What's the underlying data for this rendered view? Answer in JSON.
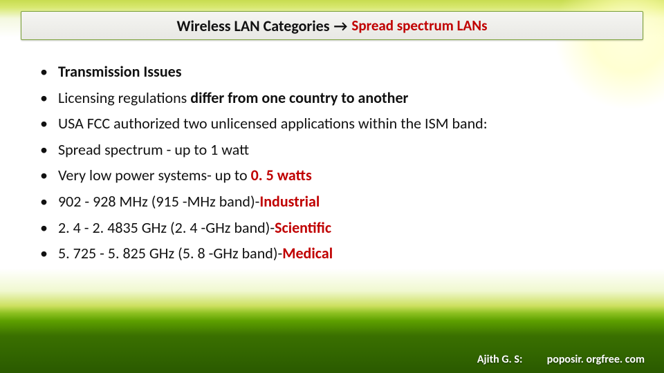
{
  "colors": {
    "accent_red": "#c00000",
    "title_border": "#7aa038",
    "text": "#111111",
    "footer_text": "#ffffff",
    "bg_top_band": "#c8dc50",
    "bg_grass_light": "#8cc020",
    "bg_grass_dark": "#2a5a00"
  },
  "title": {
    "main": "Wireless LAN Categories",
    "arrow": "→",
    "sub": "Spread spectrum LANs",
    "main_fontsize": 22,
    "sub_fontsize": 21,
    "main_weight": 700
  },
  "bullets": {
    "fontsize": 22,
    "items": [
      {
        "segments": [
          {
            "text": "Transmission Issues",
            "bold": true
          }
        ]
      },
      {
        "segments": [
          {
            "text": "Licensing regulations "
          },
          {
            "text": "differ from one country to another",
            "bold": true
          }
        ]
      },
      {
        "segments": [
          {
            "text": "USA FCC authorized two unlicensed applications within the ISM band:"
          }
        ]
      },
      {
        "segments": [
          {
            "text": "Spread spectrum - up to 1 watt"
          }
        ]
      },
      {
        "segments": [
          {
            "text": "Very low power systems- up to "
          },
          {
            "text": "0. 5 watts",
            "red": true
          }
        ]
      },
      {
        "segments": [
          {
            "text": "902 - 928 MHz (915 -MHz band)-"
          },
          {
            "text": "Industrial",
            "red": true
          }
        ]
      },
      {
        "segments": [
          {
            "text": "2. 4 - 2. 4835 GHz (2. 4 -GHz band)-"
          },
          {
            "text": "Scientific",
            "red": true
          }
        ]
      },
      {
        "segments": [
          {
            "text": "5. 725 - 5. 825 GHz (5. 8 -GHz band)-"
          },
          {
            "text": "Medical",
            "red": true
          }
        ]
      }
    ]
  },
  "footer": {
    "author": "Ajith G. S:",
    "site": "poposir. orgfree. com",
    "fontsize": 16
  }
}
